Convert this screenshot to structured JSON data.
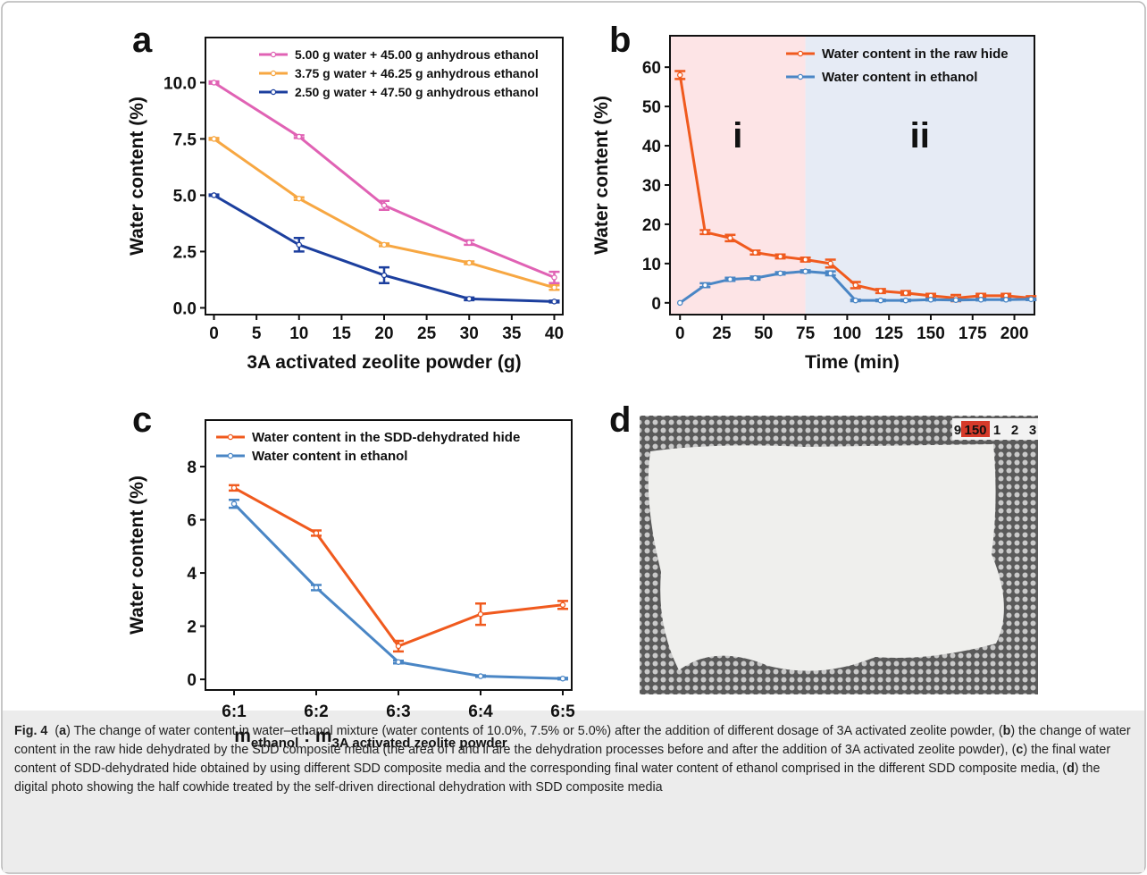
{
  "chart_data": [
    {
      "type": "line",
      "panel": "a",
      "xlabel": "3A activated zeolite powder (g)",
      "ylabel": "Water content (%)",
      "x": [
        0,
        10,
        20,
        30,
        40
      ],
      "series": [
        {
          "name": "5.00 g water + 45.00 g anhydrous ethanol",
          "color": "#e062b4",
          "values": [
            10.0,
            7.6,
            4.55,
            2.9,
            1.35
          ],
          "errors": [
            0.05,
            0.06,
            0.2,
            0.1,
            0.25
          ]
        },
        {
          "name": "3.75 g water + 46.25 g anhydrous ethanol",
          "color": "#f7a742",
          "values": [
            7.5,
            4.85,
            2.8,
            2.0,
            0.9
          ],
          "errors": [
            0.04,
            0.06,
            0.06,
            0.06,
            0.1
          ]
        },
        {
          "name": "2.50 g water + 47.50 g anhydrous ethanol",
          "color": "#1c3f9e",
          "values": [
            5.0,
            2.8,
            1.45,
            0.4,
            0.28
          ],
          "errors": [
            0.03,
            0.3,
            0.35,
            0.06,
            0.04
          ]
        }
      ],
      "xlim": [
        -1,
        41
      ],
      "xticks": [
        0,
        5,
        10,
        15,
        20,
        25,
        30,
        35,
        40
      ],
      "ylim": [
        -0.3,
        12
      ],
      "yticks": [
        {
          "value": 0,
          "label": "0.0"
        },
        {
          "value": 2.5,
          "label": "2.5"
        },
        {
          "value": 5,
          "label": "5.0"
        },
        {
          "value": 7.5,
          "label": "7.5"
        },
        {
          "value": 10,
          "label": "10.0"
        }
      ],
      "legend": "upper right"
    },
    {
      "type": "line",
      "panel": "b",
      "xlabel": "Time (min)",
      "ylabel": "Water content (%)",
      "x": [
        0,
        15,
        30,
        45,
        60,
        75,
        90,
        105,
        120,
        135,
        150,
        165,
        180,
        195,
        210
      ],
      "series": [
        {
          "name": "Water content in the raw hide",
          "color": "#f05a1e",
          "values": [
            58,
            18,
            16.5,
            12.8,
            11.8,
            11,
            10,
            4.5,
            3,
            2.5,
            1.8,
            1.2,
            1.8,
            1.8,
            1.2
          ],
          "errors": [
            1.0,
            0.5,
            0.8,
            0.5,
            0.5,
            0.5,
            1.0,
            0.8,
            0.5,
            0.5,
            0.5,
            0.8,
            0.5,
            0.5,
            0.5
          ]
        },
        {
          "name": "Water content in ethanol",
          "color": "#4a86c5",
          "values": [
            0,
            4.5,
            6,
            6.3,
            7.5,
            8,
            7.5,
            0.6,
            0.6,
            0.6,
            0.8,
            0.7,
            0.8,
            0.8,
            0.9
          ],
          "errors": [
            0,
            0.5,
            0.4,
            0.4,
            0.3,
            0.3,
            0.5,
            0.2,
            0.2,
            0.2,
            0.2,
            0.2,
            0.2,
            0.2,
            0.2
          ]
        }
      ],
      "regions": [
        {
          "label": "i",
          "xrange": [
            -6,
            75
          ],
          "color": "#fde4e6"
        },
        {
          "label": "ii",
          "xrange": [
            75,
            212
          ],
          "color": "#e6ebf5"
        }
      ],
      "xlim": [
        -6,
        212
      ],
      "xticks": [
        0,
        25,
        50,
        75,
        100,
        125,
        150,
        175,
        200
      ],
      "ylim": [
        -3,
        68
      ],
      "yticks": [
        0,
        10,
        20,
        30,
        40,
        50,
        60
      ],
      "legend": "upper right"
    },
    {
      "type": "line",
      "panel": "c",
      "xlabel_parts": [
        "m",
        "ethanol",
        " : m",
        "3A activated zeolite powder"
      ],
      "ylabel": "Water content (%)",
      "categories": [
        "6:1",
        "6:2",
        "6:3",
        "6:4",
        "6:5"
      ],
      "series": [
        {
          "name": "Water content in the SDD-dehydrated hide",
          "color": "#f05a1e",
          "values": [
            7.2,
            5.5,
            1.25,
            2.45,
            2.8
          ],
          "errors": [
            0.1,
            0.1,
            0.2,
            0.4,
            0.15
          ]
        },
        {
          "name": "Water content in ethanol",
          "color": "#4a86c5",
          "values": [
            6.6,
            3.45,
            0.65,
            0.12,
            0.03
          ],
          "errors": [
            0.15,
            0.1,
            0.05,
            0.03,
            0.03
          ]
        }
      ],
      "ylim": [
        -0.4,
        9.75
      ],
      "yticks": [
        0,
        2,
        4,
        6,
        8
      ],
      "legend": "upper left"
    }
  ],
  "photo": {
    "panel": "d",
    "ruler_labels": [
      "9",
      "150",
      "1",
      "2",
      "3"
    ]
  },
  "caption": {
    "label": "Fig. 4",
    "runs": [
      "(",
      "a",
      ") The change of water content in water–ethanol mixture (water contents of 10.0%, 7.5% or 5.0%) after the addition of different dosage of 3A activated zeolite powder, (",
      "b",
      ") the change of water content in the raw hide dehydrated by the SDD composite media (the area of i and ii are the dehydration processes before and after the addition of 3A activated zeolite powder), (",
      "c",
      ") the final water content of SDD-dehydrated hide obtained by using different SDD composite media and the corresponding final water content of ethanol comprised in the different SDD composite media, (",
      "d",
      ") the digital photo showing the half cowhide treated by the self-driven directional dehydration with SDD composite media"
    ]
  }
}
